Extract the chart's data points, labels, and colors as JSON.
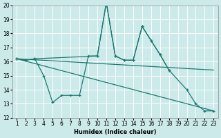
{
  "xlabel": "Humidex (Indice chaleur)",
  "bg_color": "#cceaea",
  "line_color": "#1a7a6e",
  "grid_color": "#ffffff",
  "ylim": [
    12,
    20
  ],
  "yticks": [
    12,
    13,
    14,
    15,
    16,
    17,
    18,
    19,
    20
  ],
  "xticks": [
    1,
    2,
    3,
    4,
    5,
    6,
    7,
    8,
    9,
    10,
    11,
    12,
    13,
    14,
    15,
    16,
    17,
    18,
    19,
    20,
    21,
    22,
    23
  ],
  "xlim": [
    0.5,
    23.5
  ],
  "line_zigzag_x": [
    1,
    2,
    3,
    4,
    5,
    6,
    7,
    8,
    9,
    10,
    11,
    12,
    13,
    14,
    15,
    16,
    17,
    18,
    20,
    21,
    22,
    23
  ],
  "line_zigzag_y": [
    16.2,
    16.1,
    16.2,
    15.0,
    13.1,
    13.6,
    13.6,
    13.6,
    16.4,
    16.4,
    20.2,
    16.4,
    16.1,
    16.1,
    18.5,
    17.5,
    16.5,
    15.4,
    14.0,
    13.0,
    12.5,
    12.5
  ],
  "line_upper_x": [
    1,
    2,
    3,
    10,
    11,
    12,
    13,
    14,
    15,
    16,
    17,
    18
  ],
  "line_upper_y": [
    16.2,
    16.1,
    16.2,
    16.4,
    20.2,
    16.4,
    16.1,
    16.1,
    18.5,
    17.5,
    16.5,
    15.4
  ],
  "trend1_x": [
    1,
    23
  ],
  "trend1_y": [
    16.2,
    15.4
  ],
  "trend2_x": [
    1,
    23
  ],
  "trend2_y": [
    16.2,
    12.5
  ]
}
